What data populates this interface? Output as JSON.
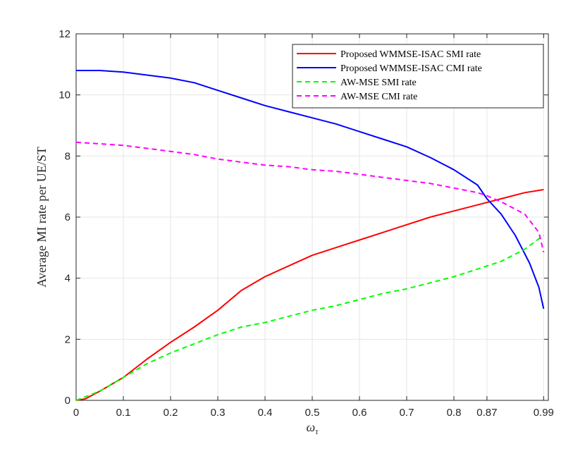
{
  "chart_data": {
    "type": "line",
    "title": "",
    "xlabel": "ω",
    "xlabel_sub": "τ",
    "ylabel": "Average MI rate per UE/ST",
    "xlim": [
      0,
      1.0
    ],
    "ylim": [
      0,
      12
    ],
    "xticks": [
      0,
      0.1,
      0.2,
      0.3,
      0.4,
      0.5,
      0.6,
      0.7,
      0.8,
      0.87,
      0.99
    ],
    "xtick_labels": [
      "0",
      "0.1",
      "0.2",
      "0.3",
      "0.4",
      "0.5",
      "0.6",
      "0.7",
      "0.8",
      "0.87",
      "0.99"
    ],
    "yticks": [
      0,
      2,
      4,
      6,
      8,
      10,
      12
    ],
    "ytick_labels": [
      "0",
      "2",
      "4",
      "6",
      "8",
      "10",
      "12"
    ],
    "grid": true,
    "legend_position": "top-right",
    "series": [
      {
        "name": "Proposed WMMSE-ISAC SMI rate",
        "color": "#ff0000",
        "dash": "solid",
        "x": [
          0,
          0.02,
          0.05,
          0.1,
          0.15,
          0.2,
          0.25,
          0.3,
          0.35,
          0.4,
          0.45,
          0.5,
          0.55,
          0.6,
          0.65,
          0.7,
          0.75,
          0.8,
          0.85,
          0.9,
          0.95,
          0.99
        ],
        "y": [
          0,
          0.05,
          0.3,
          0.75,
          1.35,
          1.9,
          2.4,
          2.95,
          3.6,
          4.05,
          4.4,
          4.75,
          5.0,
          5.25,
          5.5,
          5.75,
          6.0,
          6.2,
          6.4,
          6.6,
          6.8,
          6.9
        ]
      },
      {
        "name": "Proposed WMMSE-ISAC CMI rate",
        "color": "#0000ff",
        "dash": "solid",
        "x": [
          0,
          0.05,
          0.1,
          0.15,
          0.2,
          0.25,
          0.3,
          0.35,
          0.4,
          0.45,
          0.5,
          0.55,
          0.6,
          0.65,
          0.7,
          0.75,
          0.8,
          0.85,
          0.87,
          0.9,
          0.93,
          0.96,
          0.98,
          0.99
        ],
        "y": [
          10.8,
          10.8,
          10.75,
          10.65,
          10.55,
          10.4,
          10.15,
          9.9,
          9.65,
          9.45,
          9.25,
          9.05,
          8.8,
          8.55,
          8.3,
          7.95,
          7.55,
          7.05,
          6.6,
          6.1,
          5.4,
          4.5,
          3.7,
          3.0
        ]
      },
      {
        "name": "AW-MSE SMI rate",
        "color": "#00ff00",
        "dash": "dashed",
        "x": [
          0,
          0.05,
          0.1,
          0.15,
          0.2,
          0.25,
          0.3,
          0.35,
          0.4,
          0.45,
          0.5,
          0.55,
          0.6,
          0.65,
          0.7,
          0.75,
          0.8,
          0.85,
          0.9,
          0.95,
          0.99
        ],
        "y": [
          0,
          0.3,
          0.75,
          1.2,
          1.55,
          1.85,
          2.15,
          2.4,
          2.55,
          2.75,
          2.95,
          3.1,
          3.3,
          3.5,
          3.65,
          3.85,
          4.05,
          4.3,
          4.55,
          4.95,
          5.4
        ]
      },
      {
        "name": "AW-MSE CMI rate",
        "color": "#ff00ff",
        "dash": "dashed",
        "x": [
          0,
          0.05,
          0.1,
          0.15,
          0.2,
          0.25,
          0.3,
          0.35,
          0.4,
          0.45,
          0.5,
          0.55,
          0.6,
          0.65,
          0.7,
          0.75,
          0.8,
          0.85,
          0.87,
          0.9,
          0.95,
          0.98,
          0.99
        ],
        "y": [
          8.45,
          8.4,
          8.35,
          8.25,
          8.15,
          8.05,
          7.9,
          7.8,
          7.7,
          7.65,
          7.55,
          7.5,
          7.4,
          7.3,
          7.2,
          7.1,
          6.95,
          6.8,
          6.7,
          6.5,
          6.1,
          5.5,
          4.85
        ]
      }
    ]
  }
}
